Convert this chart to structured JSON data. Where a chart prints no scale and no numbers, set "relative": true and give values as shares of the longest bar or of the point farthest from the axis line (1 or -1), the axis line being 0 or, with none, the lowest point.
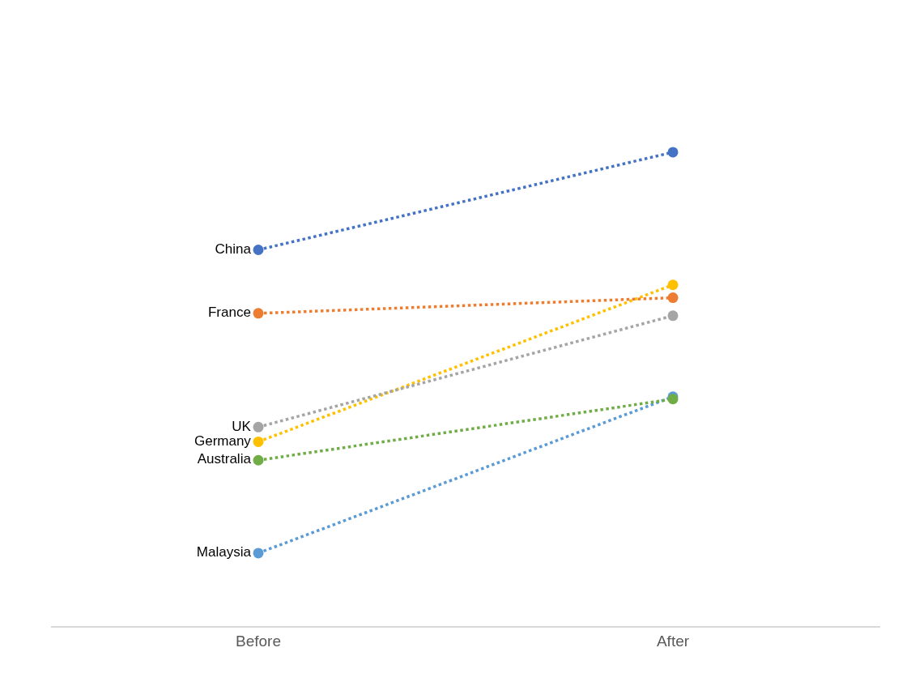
{
  "chart_data": {
    "type": "line",
    "relative": true,
    "categories": [
      "Before",
      "After"
    ],
    "legend": false,
    "marker": "circle",
    "line_style": "dotted",
    "series": [
      {
        "name": "China",
        "color": "#4472c4",
        "values": [
          0.794,
          1
        ]
      },
      {
        "name": "France",
        "color": "#ed7d31",
        "values": [
          0.66,
          0.693
        ]
      },
      {
        "name": "UK",
        "color": "#a5a5a5",
        "values": [
          0.42,
          0.655
        ]
      },
      {
        "name": "Germany",
        "color": "#ffc000",
        "values": [
          0.389,
          0.72
        ]
      },
      {
        "name": "Australia",
        "color": "#70ad47",
        "values": [
          0.35,
          0.479
        ]
      },
      {
        "name": "Malaysia",
        "color": "#5b9bd5",
        "values": [
          0.154,
          0.484
        ]
      }
    ]
  }
}
